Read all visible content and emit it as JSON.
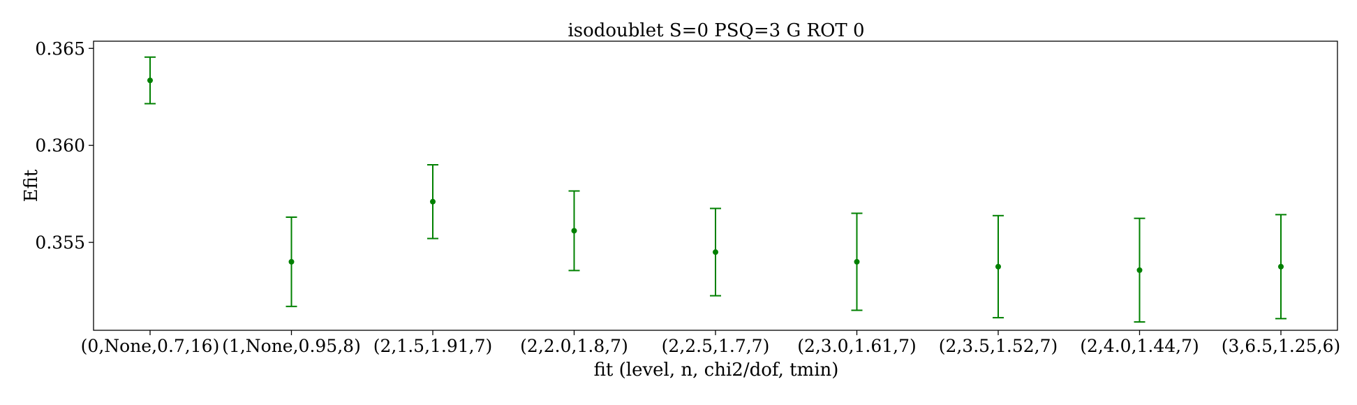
{
  "chart_data": {
    "type": "scatter",
    "title": "isodoublet S=0 PSQ=3 G ROT 0",
    "xlabel": "fit (level, n, chi2/dof, tmin)",
    "ylabel": "Efit",
    "categories": [
      "(0,None,0.7,16)",
      "(1,None,0.95,8)",
      "(2,1.5,1.91,7)",
      "(2,2.0,1.8,7)",
      "(2,2.5,1.7,7)",
      "(2,3.0,1.61,7)",
      "(2,3.5,1.52,7)",
      "(2,4.0,1.44,7)",
      "(3,6.5,1.25,6)"
    ],
    "series": [
      {
        "values": [
          0.36335,
          0.354,
          0.3571,
          0.3556,
          0.3545,
          0.354,
          0.35375,
          0.35357,
          0.35375
        ],
        "errors": [
          0.0012,
          0.0023,
          0.0019,
          0.00205,
          0.00225,
          0.0025,
          0.00263,
          0.00267,
          0.00268
        ],
        "color": "#008000"
      }
    ],
    "ylim": [
      0.35047,
      0.36537
    ],
    "yticks": [
      0.355,
      0.36,
      0.365
    ],
    "ytick_labels": [
      "0.355",
      "0.360",
      "0.365"
    ],
    "grid": false,
    "legend": "none"
  }
}
